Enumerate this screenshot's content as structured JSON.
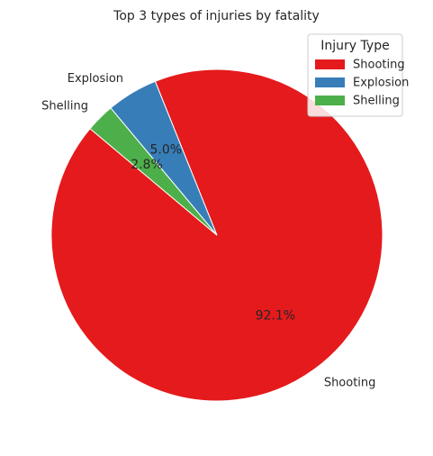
{
  "chart_data": {
    "type": "pie",
    "title": "Top 3 types of injuries by fatality",
    "categories": [
      "Shooting",
      "Explosion",
      "Shelling"
    ],
    "values": [
      92.1,
      5.0,
      2.8
    ],
    "percent_labels": [
      "92.1%",
      "5.0%",
      "2.8%"
    ],
    "colors": [
      "#e41a1c",
      "#377eb8",
      "#4daf4a"
    ],
    "start_angle_deg": 140,
    "direction": "counterclockwise",
    "legend": {
      "title": "Injury Type",
      "position": "top-right",
      "entries": [
        "Shooting",
        "Explosion",
        "Shelling"
      ]
    }
  }
}
